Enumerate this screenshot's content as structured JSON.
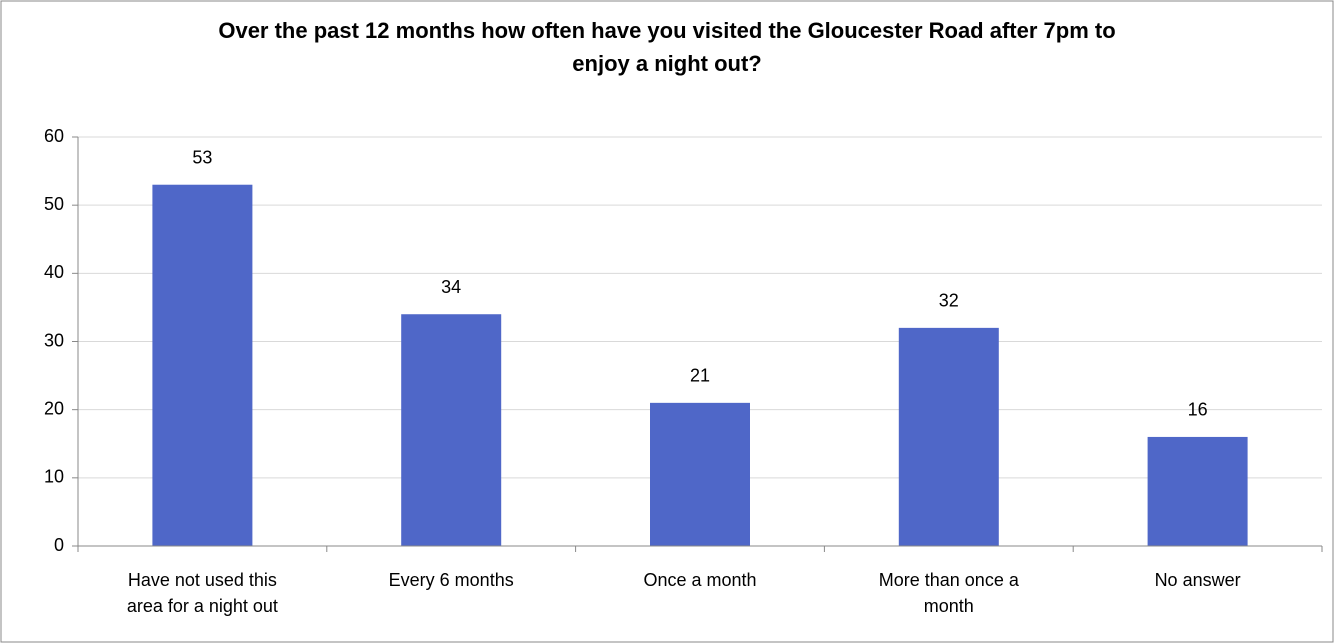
{
  "chart_data": {
    "type": "bar",
    "title": "Over the past 12 months how often have you visited the Gloucester Road after 7pm to enjoy a night out?",
    "categories": [
      "Have not used this area for a night out",
      "Every 6 months",
      "Once a month",
      "More than once a month",
      "No answer"
    ],
    "values": [
      53,
      34,
      21,
      32,
      16
    ],
    "color": "#4f67c8",
    "ylim": [
      0,
      60
    ],
    "yticks": [
      0,
      10,
      20,
      30,
      40,
      50,
      60
    ],
    "grid": true
  }
}
